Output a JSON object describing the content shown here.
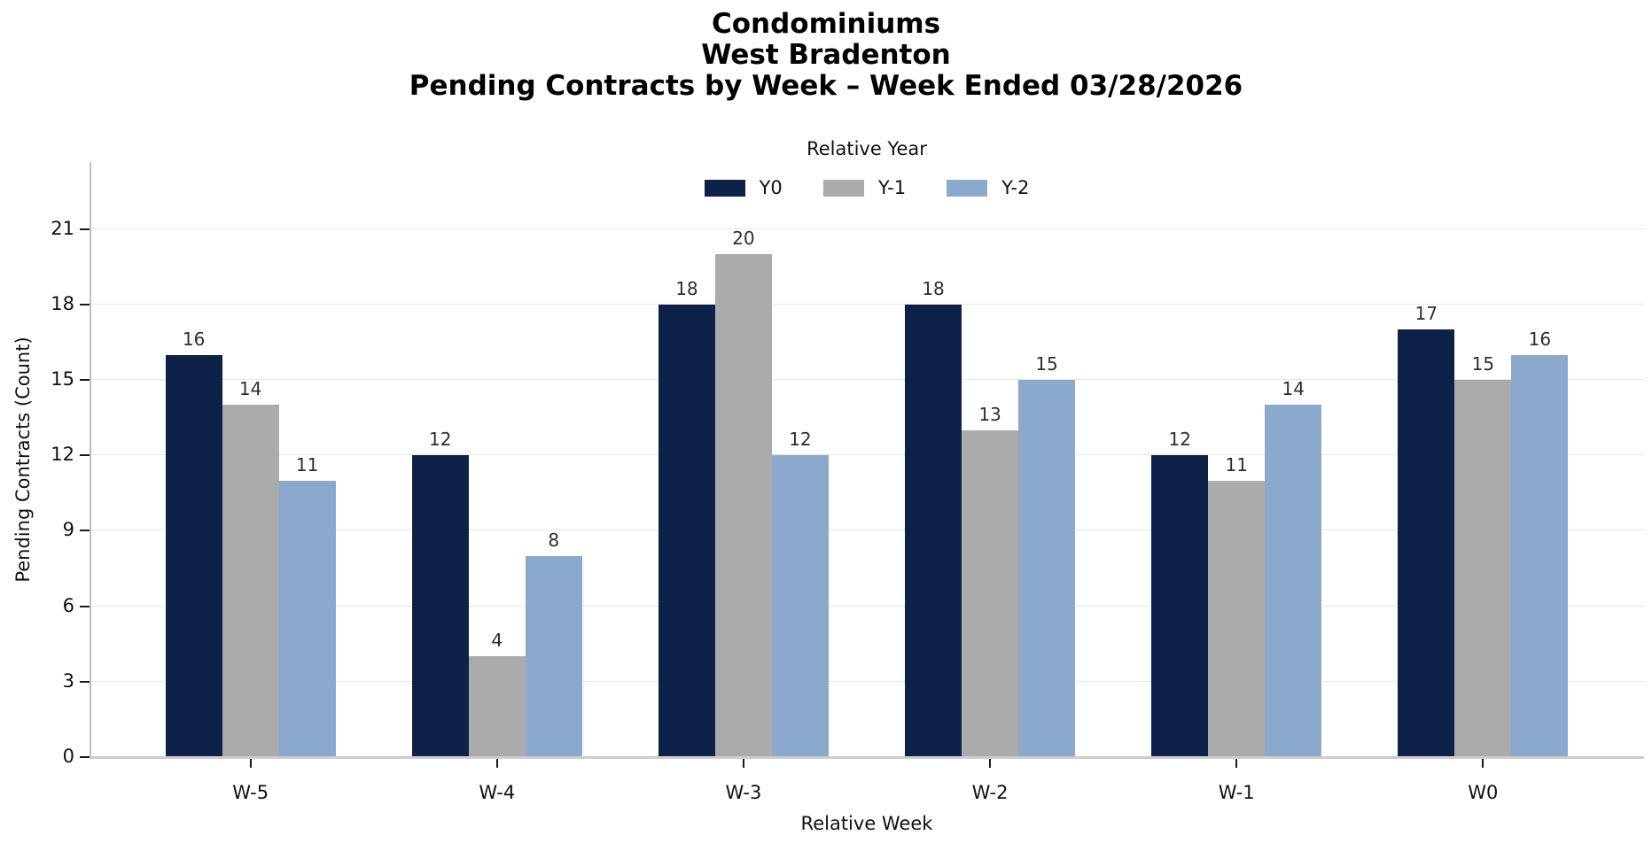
{
  "title": {
    "line1": "Condominiums",
    "line2": "West Bradenton",
    "line3": "Pending Contracts by Week – Week Ended 03/28/2026"
  },
  "chart_data": {
    "type": "bar",
    "title": "Condominiums / West Bradenton / Pending Contracts by Week – Week Ended 03/28/2026",
    "legend_title": "Relative Year",
    "legend_position": "top-center",
    "xlabel": "Relative Week",
    "ylabel": "Pending Contracts (Count)",
    "categories": [
      "W-5",
      "W-4",
      "W-3",
      "W-2",
      "W-1",
      "W0"
    ],
    "series": [
      {
        "name": "Y0",
        "color": "#0e2149",
        "values": [
          16,
          12,
          18,
          18,
          12,
          17
        ]
      },
      {
        "name": "Y-1",
        "color": "#ababab",
        "values": [
          14,
          4,
          20,
          13,
          11,
          15
        ]
      },
      {
        "name": "Y-2",
        "color": "#8aa9cc",
        "values": [
          11,
          8,
          12,
          15,
          14,
          16
        ]
      }
    ],
    "yticks": [
      0,
      3,
      6,
      9,
      12,
      15,
      18,
      21
    ],
    "ylim": [
      0,
      23.66
    ],
    "grid": "horizontal",
    "bar_value_labels": true
  }
}
